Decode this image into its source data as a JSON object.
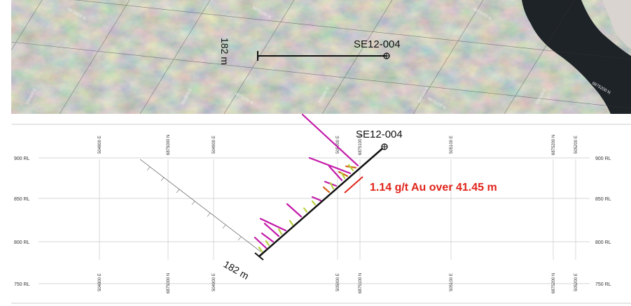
{
  "plan_view": {
    "hole_id": "SE12-004",
    "length_label": "182 m",
    "grid_labels": {
      "north_a": "6875000 N",
      "north_b": "6875100 N",
      "north_c": "6875200 N",
      "north_d": "6875000 N",
      "north_e": "6875100 N",
      "north_f": "6875200 N",
      "east_a": "504900 E",
      "east_b": "504800 E",
      "east_c": "505000 E",
      "east_d": "505100 E",
      "east_e": "505200 E"
    }
  },
  "section_view": {
    "hole_id": "SE12-004",
    "length_label": "182 m",
    "intercept_label": "1.14 g/t Au over 41.45 m",
    "rl_labels": [
      "900 RL",
      "850 RL",
      "800 RL",
      "750 RL"
    ],
    "top_grid_labels": [
      "504800 E",
      "6875000 N",
      "504900 E",
      "505000 E",
      "6875100 N",
      "505100 E",
      "6875200 N",
      "505200 E"
    ],
    "bottom_grid_labels": [
      "504800 E",
      "6875000 N",
      "504900 E",
      "505000 E",
      "6875100 N",
      "505100 E",
      "6875200 N",
      "505200 E"
    ]
  },
  "colors": {
    "intercept": "#e0241b",
    "assay_high": "#c21aa8",
    "assay_mid": "#d2691e",
    "assay_low": "#b7d23a",
    "trace": "#111111",
    "water": "#1e2327"
  }
}
